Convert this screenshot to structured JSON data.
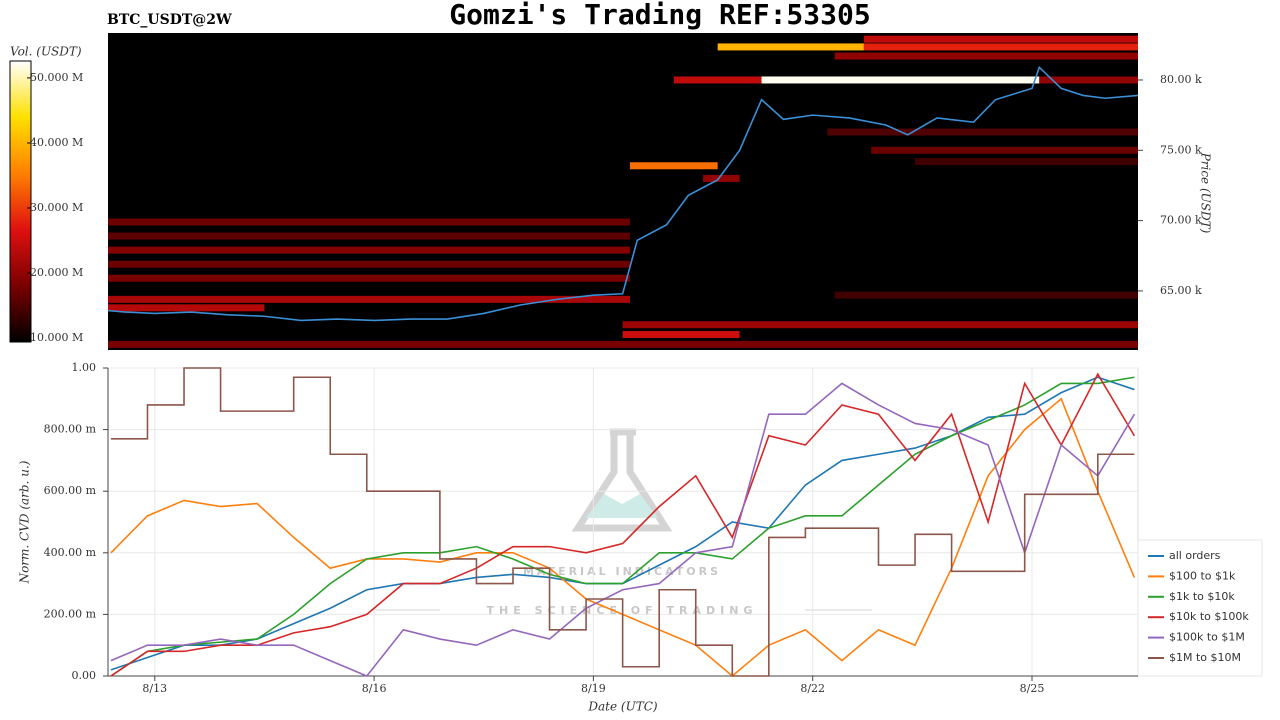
{
  "chart_data": [
    {
      "type": "heatmap",
      "title": "Gomzi's Trading REF:53305",
      "subtitle": "BTC_USDT@2W",
      "y_label": "Price (USDT)",
      "colorbar_label": "Vol. (USDT)",
      "colorscale": [
        "#000000",
        "#7a0000",
        "#e01010",
        "#ff8000",
        "#ffe000",
        "#ffffff"
      ],
      "clim": [
        9.4,
        52.6
      ],
      "colorbar_ticks": [
        {
          "value": 10,
          "label": "10.000 M"
        },
        {
          "value": 20,
          "label": "20.000 M"
        },
        {
          "value": 30,
          "label": "30.000 M"
        },
        {
          "value": 40,
          "label": "40.000 M"
        },
        {
          "value": 50,
          "label": "50.000 M"
        }
      ],
      "xlim": [
        12.36,
        26.45
      ],
      "ylim": [
        60800,
        83340
      ],
      "yticks": [
        {
          "value": 65000,
          "label": "65.00 k"
        },
        {
          "value": 70000,
          "label": "70.00 k"
        },
        {
          "value": 75000,
          "label": "75.00 k"
        },
        {
          "value": 80000,
          "label": "80.00 k"
        }
      ],
      "levels": [
        {
          "price": 82900,
          "x_start": 22.7,
          "x_end": 26.45,
          "volume": 24
        },
        {
          "price": 82350,
          "x_start": 20.7,
          "x_end": 22.7,
          "volume": 40
        },
        {
          "price": 82350,
          "x_start": 22.7,
          "x_end": 26.45,
          "volume": 28
        },
        {
          "price": 81700,
          "x_start": 22.3,
          "x_end": 26.45,
          "volume": 20
        },
        {
          "price": 80000,
          "x_start": 20.1,
          "x_end": 21.3,
          "volume": 24
        },
        {
          "price": 80000,
          "x_start": 21.3,
          "x_end": 25.1,
          "volume": 52
        },
        {
          "price": 80000,
          "x_start": 25.1,
          "x_end": 26.45,
          "volume": 20
        },
        {
          "price": 76300,
          "x_start": 22.2,
          "x_end": 26.45,
          "volume": 15
        },
        {
          "price": 75000,
          "x_start": 22.8,
          "x_end": 26.45,
          "volume": 17
        },
        {
          "price": 74200,
          "x_start": 23.4,
          "x_end": 26.45,
          "volume": 14
        },
        {
          "price": 73900,
          "x_start": 19.5,
          "x_end": 20.7,
          "volume": 34
        },
        {
          "price": 73000,
          "x_start": 20.5,
          "x_end": 21.0,
          "volume": 20
        },
        {
          "price": 69900,
          "x_start": 12.36,
          "x_end": 19.5,
          "volume": 17
        },
        {
          "price": 68900,
          "x_start": 12.36,
          "x_end": 19.5,
          "volume": 16
        },
        {
          "price": 67900,
          "x_start": 12.36,
          "x_end": 19.5,
          "volume": 19
        },
        {
          "price": 66900,
          "x_start": 12.36,
          "x_end": 19.5,
          "volume": 17
        },
        {
          "price": 65900,
          "x_start": 12.36,
          "x_end": 19.5,
          "volume": 18
        },
        {
          "price": 64700,
          "x_start": 22.3,
          "x_end": 26.45,
          "volume": 14
        },
        {
          "price": 64400,
          "x_start": 12.36,
          "x_end": 19.5,
          "volume": 22
        },
        {
          "price": 63800,
          "x_start": 12.36,
          "x_end": 14.5,
          "volume": 23
        },
        {
          "price": 62600,
          "x_start": 19.4,
          "x_end": 26.45,
          "volume": 21
        },
        {
          "price": 61900,
          "x_start": 19.4,
          "x_end": 21.0,
          "volume": 25
        },
        {
          "price": 61200,
          "x_start": 12.36,
          "x_end": 26.45,
          "volume": 18
        }
      ],
      "series": [
        {
          "name": "BTC_USDT",
          "color": "#3a8fd6",
          "x": [
            12.36,
            12.6,
            13.0,
            13.5,
            14.0,
            14.5,
            15.0,
            15.5,
            16.0,
            16.5,
            17.0,
            17.5,
            18.0,
            18.5,
            19.0,
            19.4,
            19.6,
            20.0,
            20.3,
            20.7,
            21.0,
            21.3,
            21.6,
            22.0,
            22.5,
            23.0,
            23.3,
            23.7,
            24.2,
            24.5,
            25.0,
            25.1,
            25.4,
            25.7,
            26.0,
            26.45
          ],
          "values": [
            63600,
            63500,
            63400,
            63500,
            63300,
            63200,
            62900,
            63000,
            62900,
            63000,
            63000,
            63400,
            64000,
            64400,
            64700,
            64800,
            68600,
            69700,
            71800,
            72900,
            75000,
            78600,
            77200,
            77500,
            77300,
            76800,
            76100,
            77300,
            77000,
            78600,
            79400,
            80900,
            79400,
            78900,
            78700,
            78900
          ]
        }
      ]
    },
    {
      "type": "line",
      "x_label": "Date (UTC)",
      "y_label": "Norm. CVD (arb. u.)",
      "watermark": [
        "MATERIAL INDICATORS",
        "THE SCIENCE OF TRADING"
      ],
      "xlim": [
        12.36,
        26.45
      ],
      "xticks": [
        {
          "value": 13,
          "label": "8/13"
        },
        {
          "value": 16,
          "label": "8/16"
        },
        {
          "value": 19,
          "label": "8/19"
        },
        {
          "value": 22,
          "label": "8/22"
        },
        {
          "value": 25,
          "label": "8/25"
        }
      ],
      "ylim": [
        0,
        1
      ],
      "yticks": [
        {
          "value": 0,
          "label": "0.00"
        },
        {
          "value": 0.2,
          "label": "200.00 m"
        },
        {
          "value": 0.4,
          "label": "400.00 m"
        },
        {
          "value": 0.6,
          "label": "600.00 m"
        },
        {
          "value": 0.8,
          "label": "800.00 m"
        },
        {
          "value": 1,
          "label": "1.00"
        }
      ],
      "grid": true,
      "legend": "right",
      "x": [
        12.4,
        12.9,
        13.4,
        13.9,
        14.4,
        14.9,
        15.4,
        15.9,
        16.4,
        16.9,
        17.4,
        17.9,
        18.4,
        18.9,
        19.4,
        19.9,
        20.4,
        20.9,
        21.4,
        21.9,
        22.4,
        22.9,
        23.4,
        23.9,
        24.4,
        24.9,
        25.4,
        25.9,
        26.4
      ],
      "series": [
        {
          "name": "all orders",
          "color": "#1f77b4",
          "values": [
            0.02,
            0.06,
            0.1,
            0.1,
            0.12,
            0.17,
            0.22,
            0.28,
            0.3,
            0.3,
            0.32,
            0.33,
            0.32,
            0.3,
            0.3,
            0.36,
            0.42,
            0.5,
            0.48,
            0.62,
            0.7,
            0.72,
            0.74,
            0.78,
            0.84,
            0.85,
            0.92,
            0.97,
            0.93
          ]
        },
        {
          "name": "$100 to $1k",
          "color": "#ff7f0e",
          "values": [
            0.4,
            0.52,
            0.57,
            0.55,
            0.56,
            0.45,
            0.35,
            0.38,
            0.38,
            0.37,
            0.4,
            0.4,
            0.35,
            0.25,
            0.2,
            0.15,
            0.1,
            0.0,
            0.1,
            0.15,
            0.05,
            0.15,
            0.1,
            0.35,
            0.65,
            0.8,
            0.9,
            0.6,
            0.32
          ]
        },
        {
          "name": "$1k to $10k",
          "color": "#2ca02c",
          "values": [
            0.0,
            0.08,
            0.1,
            0.11,
            0.12,
            0.2,
            0.3,
            0.38,
            0.4,
            0.4,
            0.42,
            0.38,
            0.33,
            0.3,
            0.3,
            0.4,
            0.4,
            0.38,
            0.48,
            0.52,
            0.52,
            0.62,
            0.72,
            0.78,
            0.83,
            0.88,
            0.95,
            0.95,
            0.97
          ]
        },
        {
          "name": "$10k to $100k",
          "color": "#d62728",
          "values": [
            0.0,
            0.08,
            0.08,
            0.1,
            0.1,
            0.14,
            0.16,
            0.2,
            0.3,
            0.3,
            0.35,
            0.42,
            0.42,
            0.4,
            0.43,
            0.55,
            0.65,
            0.45,
            0.78,
            0.75,
            0.88,
            0.85,
            0.7,
            0.85,
            0.5,
            0.95,
            0.75,
            0.98,
            0.78
          ]
        },
        {
          "name": "$100k to $1M",
          "color": "#9467bd",
          "values": [
            0.05,
            0.1,
            0.1,
            0.12,
            0.1,
            0.1,
            0.05,
            0.0,
            0.15,
            0.12,
            0.1,
            0.15,
            0.12,
            0.22,
            0.28,
            0.3,
            0.4,
            0.42,
            0.85,
            0.85,
            0.95,
            0.88,
            0.82,
            0.8,
            0.75,
            0.4,
            0.75,
            0.65,
            0.85
          ]
        },
        {
          "name": "$1M to $10M",
          "color": "#8c564b",
          "line_shape": "hv",
          "values": [
            0.77,
            0.88,
            1.0,
            0.86,
            0.86,
            0.97,
            0.72,
            0.6,
            0.6,
            0.38,
            0.3,
            0.35,
            0.15,
            0.25,
            0.03,
            0.28,
            0.1,
            0.0,
            0.45,
            0.48,
            0.48,
            0.36,
            0.46,
            0.34,
            0.34,
            0.59,
            0.59,
            0.72,
            0.72
          ]
        }
      ]
    }
  ]
}
